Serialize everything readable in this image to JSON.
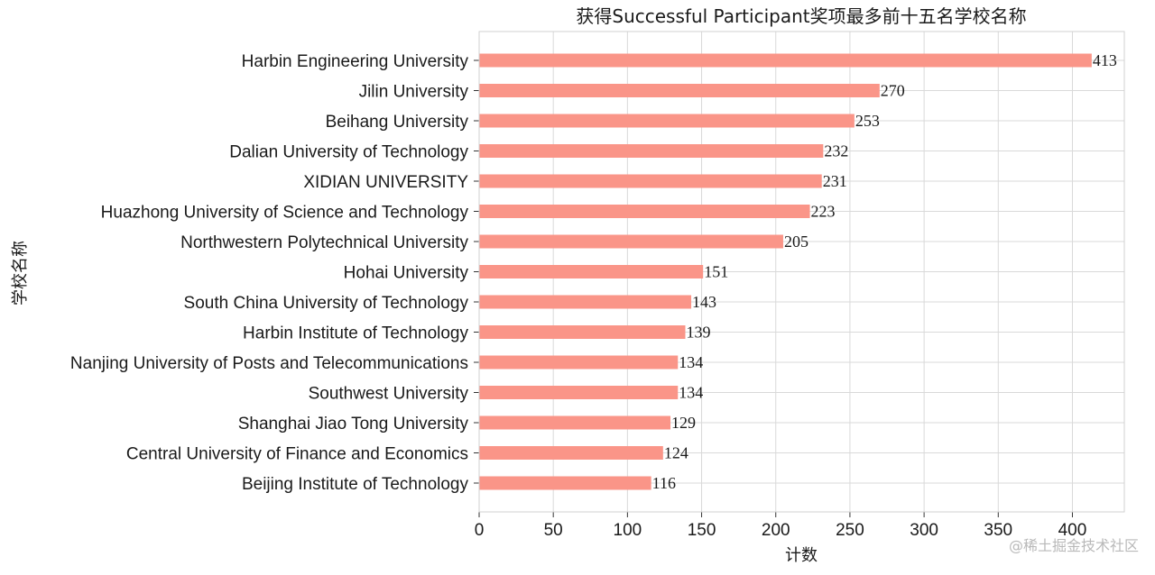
{
  "chart_data": {
    "type": "bar",
    "orientation": "horizontal",
    "title": "获得Successful Participant奖项最多前十五名学校名称",
    "xlabel": "计数",
    "ylabel": "学校名称",
    "categories": [
      "Harbin Engineering University",
      "Jilin University",
      "Beihang University",
      "Dalian University of Technology",
      "XIDIAN UNIVERSITY",
      "Huazhong University of Science and Technology",
      "Northwestern Polytechnical University",
      "Hohai University",
      "South China University of Technology",
      "Harbin Institute of Technology",
      "Nanjing University of Posts and Telecommunications",
      "Southwest University",
      "Shanghai Jiao Tong University",
      "Central University of Finance and Economics",
      "Beijing Institute of Technology"
    ],
    "values": [
      413,
      270,
      253,
      232,
      231,
      223,
      205,
      151,
      143,
      139,
      134,
      134,
      129,
      124,
      116
    ],
    "xlim": [
      0,
      435
    ],
    "xticks": [
      0,
      50,
      100,
      150,
      200,
      250,
      300,
      350,
      400
    ],
    "grid": true,
    "bar_color": "#fa9588",
    "data_labels": true
  },
  "watermark": "@稀土掘金技术社区"
}
